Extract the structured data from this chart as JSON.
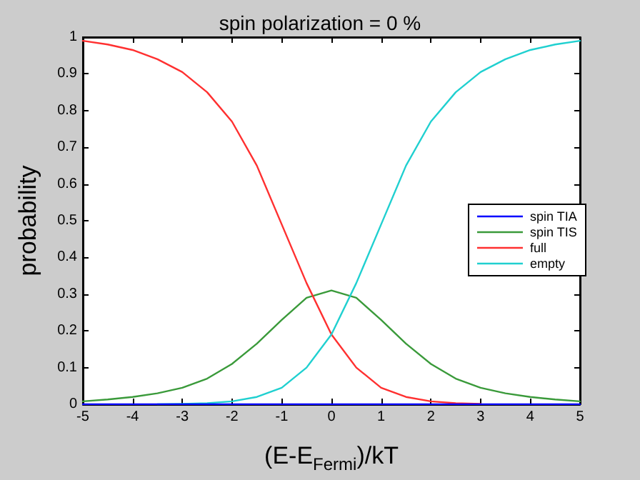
{
  "chart_data": {
    "type": "line",
    "title": "spin polarization = 0 %",
    "xlabel": "(E-E$_{Fermi}$)/kT",
    "ylabel": "probability",
    "x": [
      -5,
      -4.5,
      -4,
      -3.5,
      -3,
      -2.5,
      -2,
      -1.5,
      -1,
      -0.5,
      0,
      0.5,
      1,
      1.5,
      2,
      2.5,
      3,
      3.5,
      4,
      4.5,
      5
    ],
    "series": [
      {
        "name": "spin TIA",
        "color": "#0000ff",
        "values": [
          0,
          0,
          0,
          0,
          0,
          0,
          0,
          0,
          0,
          0,
          0,
          0,
          0,
          0,
          0,
          0,
          0,
          0,
          0,
          0,
          0
        ]
      },
      {
        "name": "spin TIS",
        "color": "#3a9a3a",
        "values": [
          0.008,
          0.013,
          0.02,
          0.03,
          0.045,
          0.07,
          0.11,
          0.165,
          0.23,
          0.29,
          0.31,
          0.29,
          0.23,
          0.165,
          0.11,
          0.07,
          0.045,
          0.03,
          0.02,
          0.013,
          0.008
        ]
      },
      {
        "name": "full",
        "color": "#ff3030",
        "values": [
          0.99,
          0.98,
          0.965,
          0.94,
          0.905,
          0.85,
          0.77,
          0.65,
          0.49,
          0.33,
          0.19,
          0.1,
          0.045,
          0.02,
          0.008,
          0.003,
          0.001,
          null,
          null,
          null,
          null
        ]
      },
      {
        "name": "empty",
        "color": "#20d0d0",
        "values": [
          null,
          null,
          null,
          0,
          0.001,
          0.003,
          0.008,
          0.02,
          0.045,
          0.1,
          0.19,
          0.33,
          0.49,
          0.65,
          0.77,
          0.85,
          0.905,
          0.94,
          0.965,
          0.98,
          0.99
        ]
      }
    ],
    "xlim": [
      -5,
      5
    ],
    "xticks": [
      -5,
      -4,
      -3,
      -2,
      -1,
      0,
      1,
      2,
      3,
      4,
      5
    ],
    "ylim": [
      0,
      1
    ],
    "yticks": [
      0,
      0.1,
      0.2,
      0.3,
      0.4,
      0.5,
      0.6,
      0.7,
      0.8,
      0.9,
      1
    ],
    "legend": "right",
    "marker": "none",
    "line_style": "solid",
    "grid": false
  }
}
